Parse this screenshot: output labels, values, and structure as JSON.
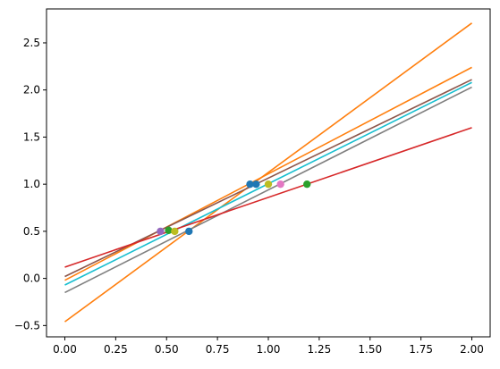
{
  "chart_data": {
    "type": "line",
    "title": "",
    "xlabel": "",
    "ylabel": "",
    "xlim": [
      -0.09,
      2.09
    ],
    "ylim": [
      -0.62,
      2.86
    ],
    "x_ticks": [
      0.0,
      0.25,
      0.5,
      0.75,
      1.0,
      1.25,
      1.5,
      1.75,
      2.0
    ],
    "x_tick_labels": [
      "0.00",
      "0.25",
      "0.50",
      "0.75",
      "1.00",
      "1.25",
      "1.50",
      "1.75",
      "2.00"
    ],
    "y_ticks": [
      -0.5,
      0.0,
      0.5,
      1.0,
      1.5,
      2.0,
      2.5
    ],
    "y_tick_labels": [
      "−0.5",
      "0.0",
      "0.5",
      "1.0",
      "1.5",
      "2.0",
      "2.5"
    ],
    "grid": false,
    "lines": [
      {
        "color": "#ff7f0e",
        "x": [
          0,
          2
        ],
        "y": [
          -0.46,
          2.71
        ]
      },
      {
        "color": "#ff7f0e",
        "x": [
          0,
          2
        ],
        "y": [
          -0.02,
          2.24
        ]
      },
      {
        "color": "#8c564b",
        "x": [
          0,
          2
        ],
        "y": [
          0.02,
          2.11
        ]
      },
      {
        "color": "#17becf",
        "x": [
          0,
          2
        ],
        "y": [
          -0.07,
          2.08
        ]
      },
      {
        "color": "#7f7f7f",
        "x": [
          0,
          2
        ],
        "y": [
          -0.15,
          2.03
        ]
      },
      {
        "color": "#d62728",
        "x": [
          0,
          2
        ],
        "y": [
          0.12,
          1.6
        ]
      }
    ],
    "points": [
      {
        "x": 0.61,
        "y": 0.5,
        "color": "#1f77b4"
      },
      {
        "x": 0.91,
        "y": 1.0,
        "color": "#1f77b4"
      },
      {
        "x": 0.94,
        "y": 1.0,
        "color": "#1f77b4"
      },
      {
        "x": 0.47,
        "y": 0.5,
        "color": "#9467bd"
      },
      {
        "x": 0.51,
        "y": 0.51,
        "color": "#2ca02c"
      },
      {
        "x": 0.54,
        "y": 0.5,
        "color": "#bcbd22"
      },
      {
        "x": 1.0,
        "y": 1.0,
        "color": "#bcbd22"
      },
      {
        "x": 1.06,
        "y": 1.0,
        "color": "#e377c2"
      },
      {
        "x": 1.19,
        "y": 1.0,
        "color": "#2ca02c"
      }
    ]
  }
}
